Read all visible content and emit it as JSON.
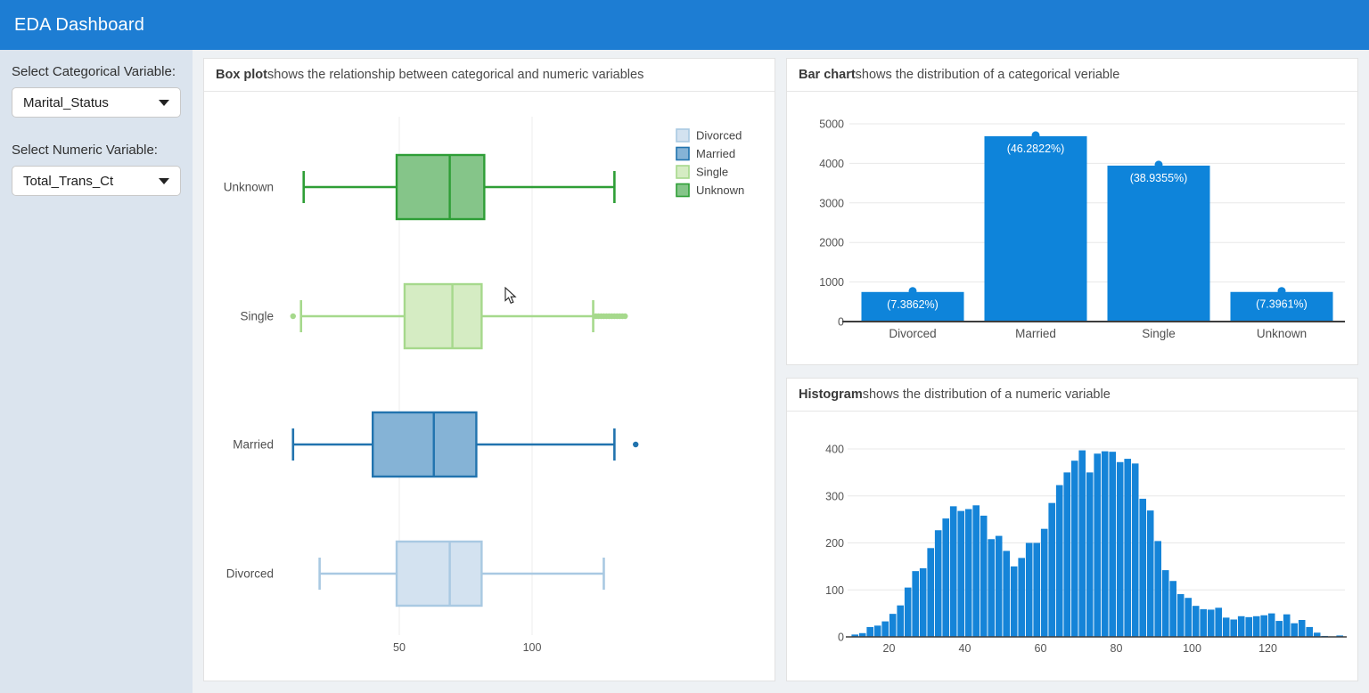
{
  "app": {
    "title": "EDA Dashboard"
  },
  "colors": {
    "header_bg": "#1d7dd3",
    "sidebar_bg": "#dbe4ee",
    "page_bg": "#eef1f4",
    "bar_blue": "#0e84da",
    "grid": "#e8e8e8",
    "axis_line": "#3d3d3d",
    "axis_text": "#545454"
  },
  "sidebar": {
    "categorical_label": "Select Categorical Variable:",
    "categorical_value": "Marital_Status",
    "numeric_label": "Select Numeric Variable:",
    "numeric_value": "Total_Trans_Ct"
  },
  "cards": {
    "boxplot": {
      "title": "Box plot",
      "description": "shows the relationship between categorical and numeric variables"
    },
    "bar": {
      "title": "Bar chart",
      "description": "shows the distribution of a categorical veriable"
    },
    "histogram": {
      "title": "Histogram",
      "description": "shows the distribution of a numeric variable"
    }
  },
  "chart_data": [
    {
      "id": "boxplot",
      "type": "box",
      "orientation": "horizontal",
      "x_variable": "Total_Trans_Ct",
      "y_variable": "Marital_Status",
      "xlim": [
        0,
        150
      ],
      "xticks": [
        50,
        100
      ],
      "legend_position": "right",
      "legend": [
        {
          "label": "Divorced",
          "fill": "#d3e2f0",
          "stroke": "#a9c9e2"
        },
        {
          "label": "Married",
          "fill": "#85b3d6",
          "stroke": "#2173ae"
        },
        {
          "label": "Single",
          "fill": "#d5ecc3",
          "stroke": "#a6d98c"
        },
        {
          "label": "Unknown",
          "fill": "#85c589",
          "stroke": "#2e9e36"
        }
      ],
      "series": [
        {
          "name": "Unknown",
          "min": 14,
          "q1": 49,
          "median": 69,
          "q3": 82,
          "max": 131,
          "outliers": [],
          "fill": "#85c589",
          "stroke": "#2e9e36"
        },
        {
          "name": "Single",
          "min": 13,
          "q1": 52,
          "median": 70,
          "q3": 81,
          "max": 123,
          "outliers": [
            10,
            124,
            125,
            126,
            127,
            128,
            129,
            130,
            131,
            132,
            133,
            134,
            135
          ],
          "fill": "#d5ecc3",
          "stroke": "#a6d98c"
        },
        {
          "name": "Married",
          "min": 10,
          "q1": 40,
          "median": 63,
          "q3": 79,
          "max": 131,
          "outliers": [
            139
          ],
          "fill": "#85b3d6",
          "stroke": "#2173ae"
        },
        {
          "name": "Divorced",
          "min": 20,
          "q1": 49,
          "median": 69,
          "q3": 81,
          "max": 127,
          "outliers": [],
          "fill": "#d3e2f0",
          "stroke": "#a9c9e2"
        }
      ]
    },
    {
      "id": "bar",
      "type": "bar",
      "categories": [
        "Divorced",
        "Married",
        "Single",
        "Unknown"
      ],
      "values": [
        748,
        4687,
        3943,
        749
      ],
      "labels": [
        "(7.3862%)",
        "(46.2822%)",
        "(38.9355%)",
        "(7.3961%)"
      ],
      "ylim": [
        0,
        5000
      ],
      "yticks": [
        0,
        1000,
        2000,
        3000,
        4000,
        5000
      ],
      "bar_color": "#0e84da",
      "label_color": "#ffffff"
    },
    {
      "id": "histogram",
      "type": "histogram",
      "x_variable": "Total_Trans_Ct",
      "bin_start": 10,
      "bin_width": 2,
      "values": [
        5,
        8,
        21,
        24,
        33,
        49,
        67,
        105,
        140,
        146,
        189,
        227,
        252,
        278,
        268,
        272,
        280,
        258,
        208,
        215,
        183,
        150,
        168,
        200,
        200,
        230,
        285,
        323,
        350,
        375,
        397,
        350,
        390,
        395,
        394,
        372,
        379,
        369,
        294,
        269,
        204,
        142,
        119,
        91,
        83,
        66,
        59,
        58,
        62,
        41,
        37,
        44,
        42,
        44,
        46,
        50,
        34,
        48,
        29,
        36,
        21,
        9,
        2,
        1,
        3
      ],
      "ylim": [
        0,
        400
      ],
      "yticks": [
        0,
        100,
        200,
        300,
        400
      ],
      "xticks": [
        20,
        40,
        60,
        80,
        100,
        120
      ],
      "bar_color": "#1584d8"
    }
  ]
}
